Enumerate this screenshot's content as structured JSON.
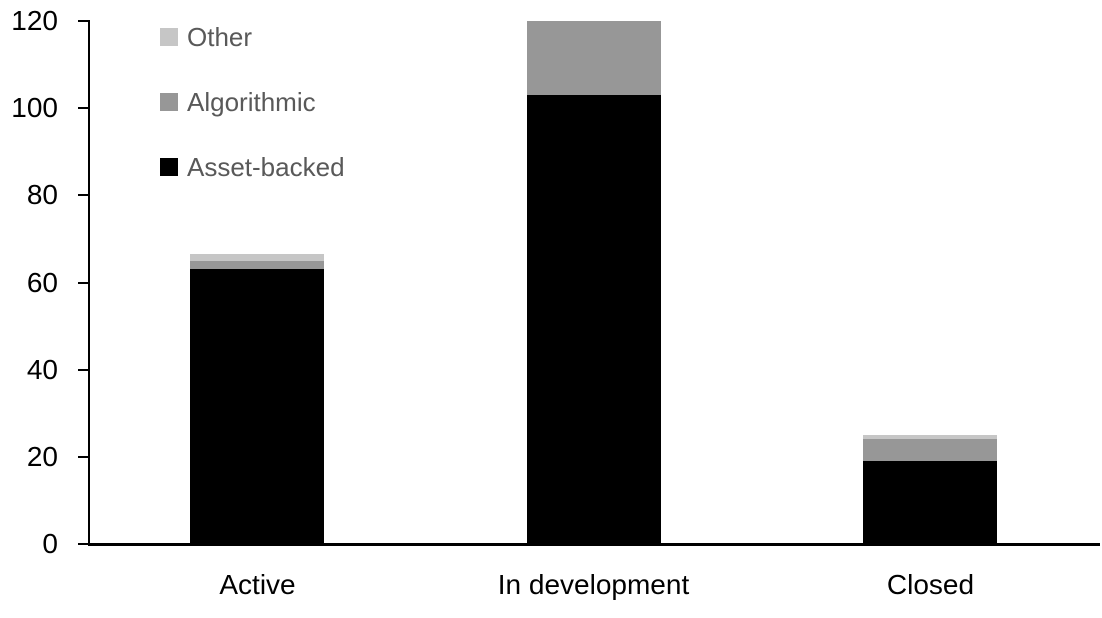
{
  "chart_data": {
    "type": "bar",
    "stacked": true,
    "title": "",
    "xlabel": "",
    "ylabel": "",
    "categories": [
      "Active",
      "In development",
      "Closed"
    ],
    "series": [
      {
        "name": "Asset-backed",
        "color": "#000000",
        "values": [
          63,
          103,
          19
        ]
      },
      {
        "name": "Algorithmic",
        "color": "#979797",
        "values": [
          2,
          17,
          5
        ]
      },
      {
        "name": "Other",
        "color": "#c6c6c6",
        "values": [
          1.5,
          0,
          1
        ]
      }
    ],
    "totals": [
      66.5,
      120,
      25
    ],
    "y_axis": {
      "min": 0,
      "max": 120,
      "tick_step": 20,
      "ticks": [
        0,
        20,
        40,
        60,
        80,
        100,
        120
      ],
      "tick_labels": [
        "0",
        "20",
        "40",
        "60",
        "80",
        "100",
        "120"
      ]
    },
    "grid": false,
    "legend_position": "top-left",
    "legend_order_top_to_bottom": [
      "Other",
      "Algorithmic",
      "Asset-backed"
    ]
  },
  "legend": {
    "items": [
      {
        "label": "Other",
        "color": "#c6c6c6"
      },
      {
        "label": "Algorithmic",
        "color": "#979797"
      },
      {
        "label": "Asset-backed",
        "color": "#000000"
      }
    ],
    "text_color": "#595959"
  },
  "axis": {
    "line_color": "#000000",
    "tick_label_color": "#000000"
  }
}
